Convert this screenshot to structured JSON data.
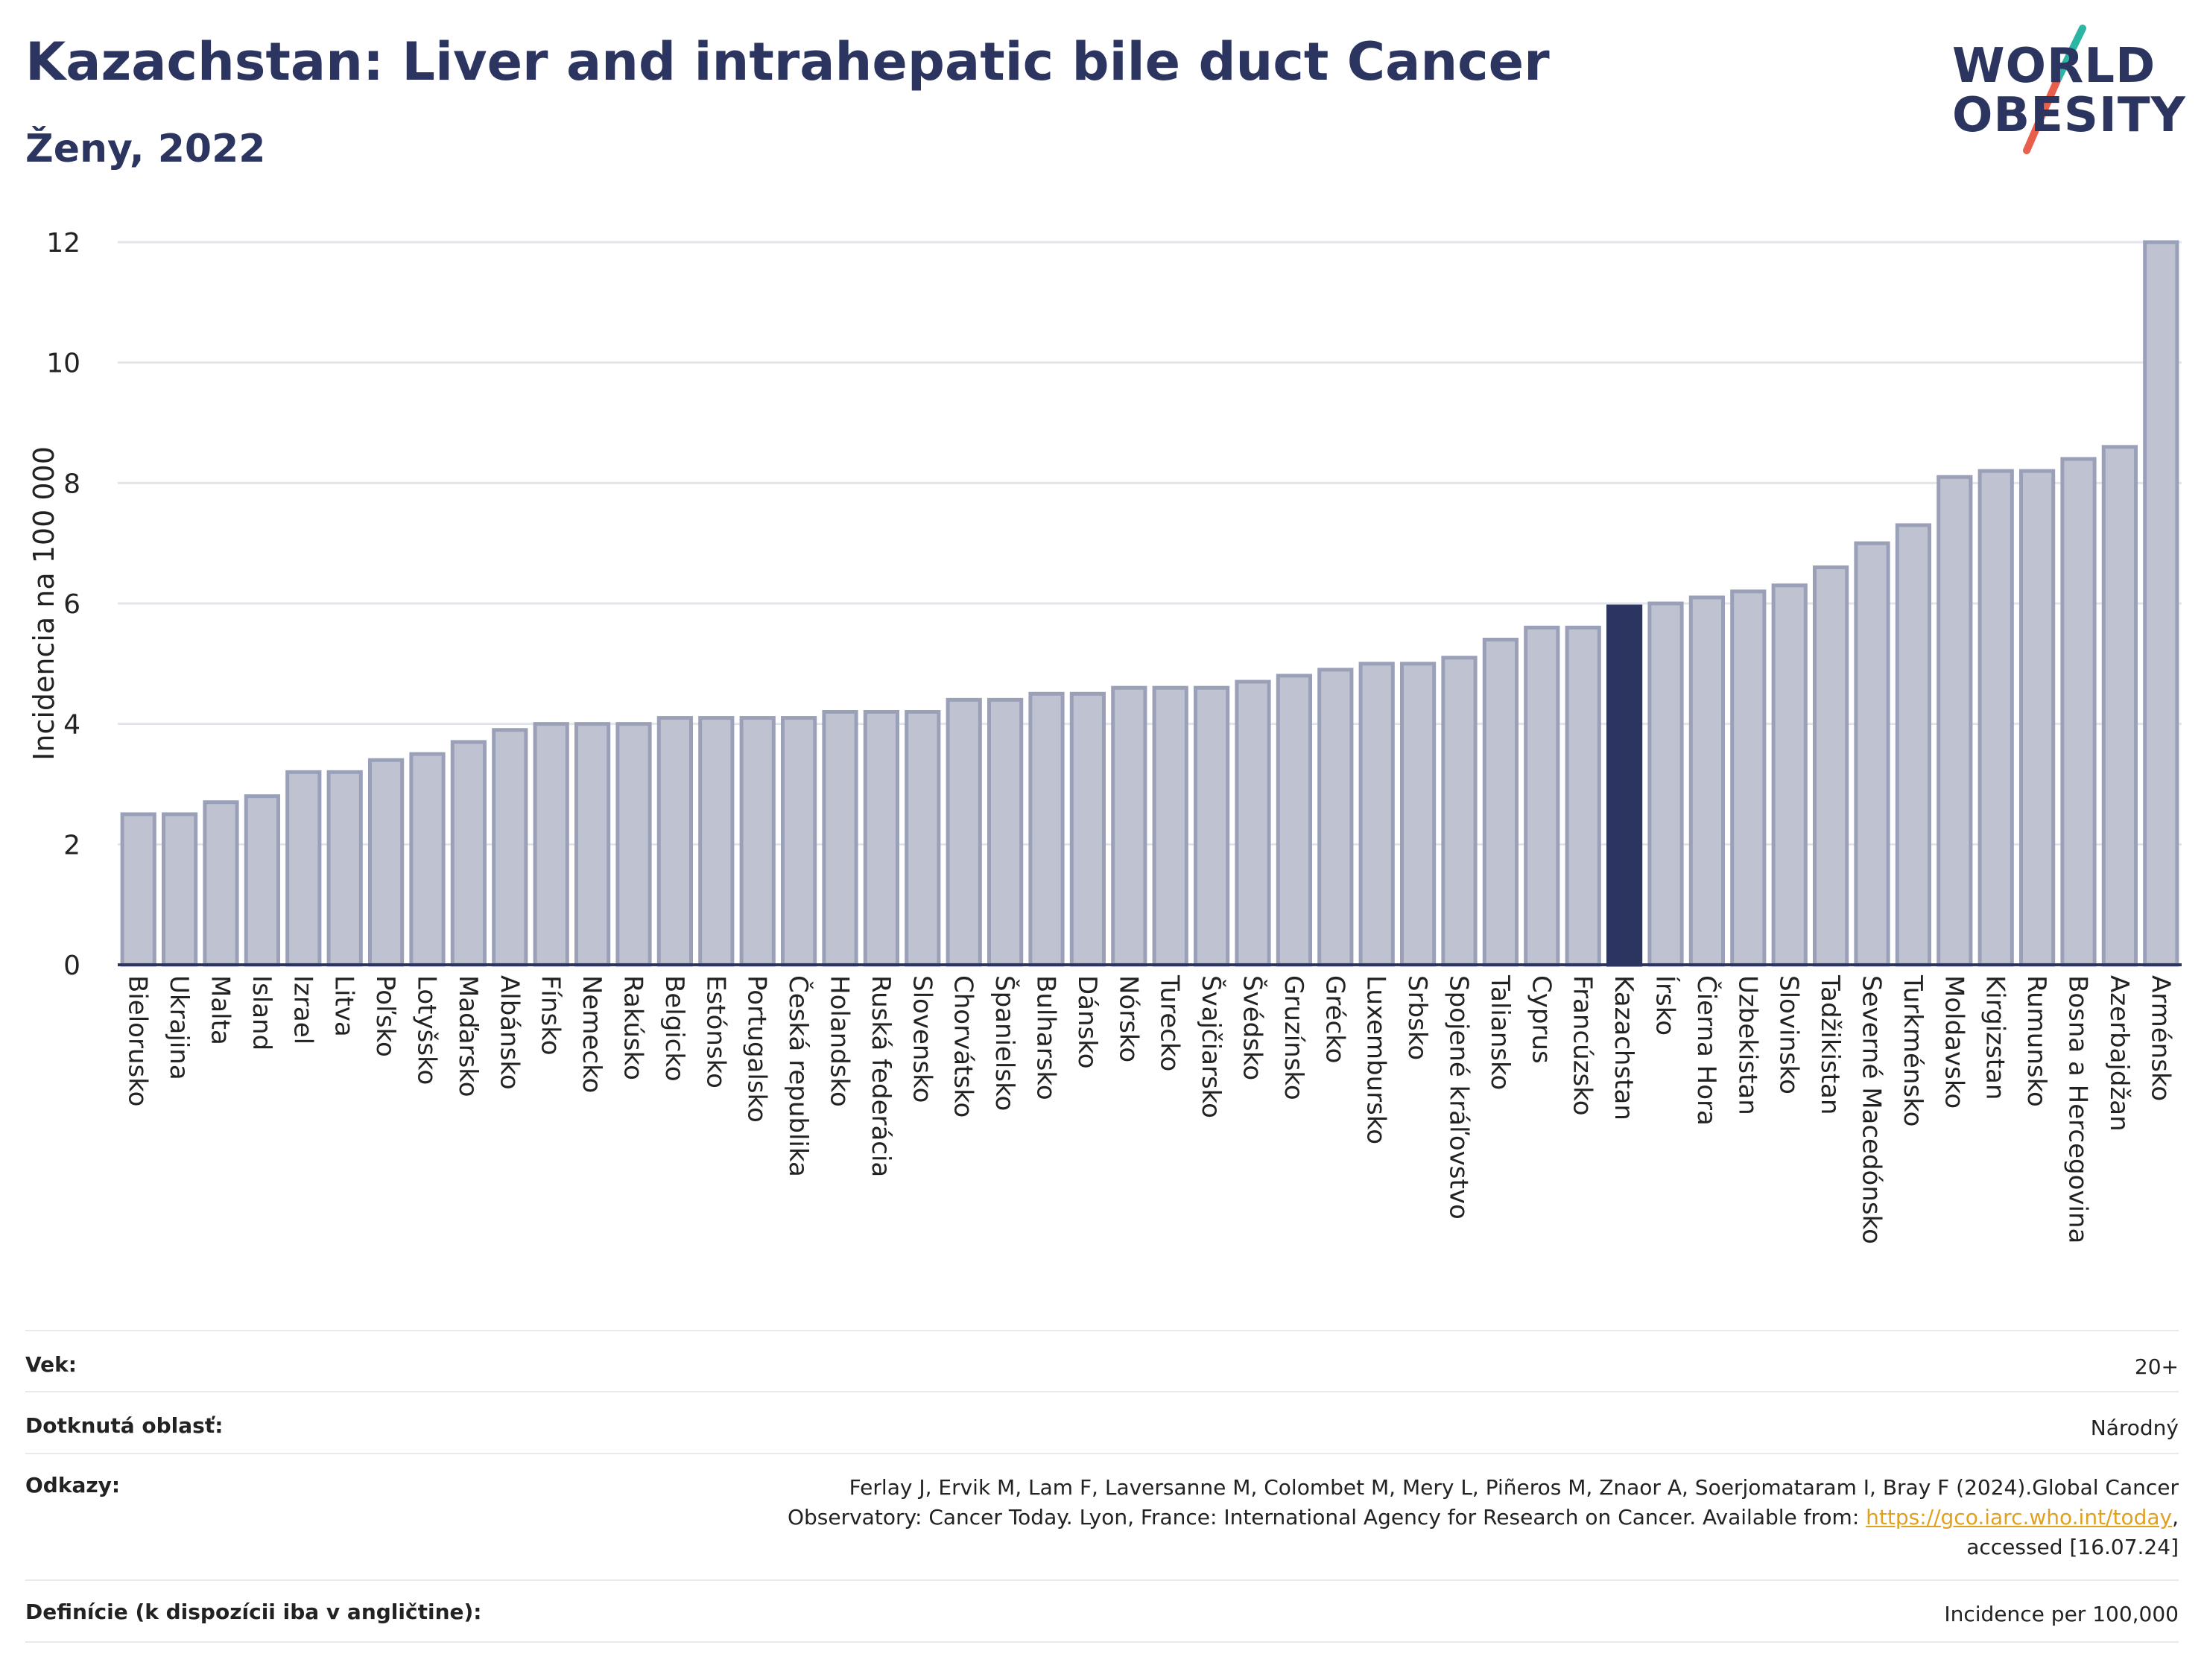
{
  "header": {
    "title": "Kazachstan: Liver and intrahepatic bile duct Cancer",
    "subtitle": "Ženy, 2022"
  },
  "logo": {
    "line1": "WORLD",
    "line2": "OBESITY",
    "accent_colors": [
      "#2ab5a5",
      "#e8604c"
    ]
  },
  "colors": {
    "bar": "#bfc3d1",
    "bar_stroke": "#9aa0b8",
    "highlight": "#2b3560",
    "grid": "#e3e5ec",
    "axis": "#2b3560"
  },
  "chart_data": {
    "type": "bar",
    "title": "Kazachstan: Liver and intrahepatic bile duct Cancer",
    "subtitle": "Ženy, 2022",
    "ylabel": "Incidencia na 100 000",
    "xlabel": "",
    "ylim": [
      0,
      12
    ],
    "yticks": [
      0,
      2,
      4,
      6,
      8,
      10,
      12
    ],
    "grid": true,
    "highlight": "Kazachstan",
    "categories": [
      "Bielorusko",
      "Ukrajina",
      "Malta",
      "Island",
      "Izrael",
      "Litva",
      "Poľsko",
      "Lotyšsko",
      "Maďarsko",
      "Albánsko",
      "Fínsko",
      "Nemecko",
      "Rakúsko",
      "Belgicko",
      "Estónsko",
      "Portugalsko",
      "Česká republika",
      "Holandsko",
      "Ruská federácia",
      "Slovensko",
      "Chorvátsko",
      "Španielsko",
      "Bulharsko",
      "Dánsko",
      "Nórsko",
      "Turecko",
      "Švajčiarsko",
      "Švédsko",
      "Gruzínsko",
      "Grécko",
      "Luxembursko",
      "Srbsko",
      "Spojené kráľovstvo",
      "Taliansko",
      "Cyprus",
      "Francúzsko",
      "Kazachstan",
      "Írsko",
      "Čierna Hora",
      "Uzbekistan",
      "Slovinsko",
      "Tadžikistan",
      "Severné Macedónsko",
      "Turkménsko",
      "Moldavsko",
      "Kirgizstan",
      "Rumunsko",
      "Bosna a Hercegovina",
      "Azerbajdžan",
      "Arménsko"
    ],
    "values": [
      2.5,
      2.5,
      2.7,
      2.8,
      3.2,
      3.2,
      3.4,
      3.5,
      3.7,
      3.9,
      4.0,
      4.0,
      4.0,
      4.1,
      4.1,
      4.1,
      4.1,
      4.2,
      4.2,
      4.2,
      4.4,
      4.4,
      4.5,
      4.5,
      4.6,
      4.6,
      4.6,
      4.7,
      4.8,
      4.9,
      5.0,
      5.0,
      5.1,
      5.4,
      5.6,
      5.6,
      5.95,
      6.0,
      6.1,
      6.2,
      6.3,
      6.6,
      7.0,
      7.3,
      8.1,
      8.2,
      8.2,
      8.4,
      8.6,
      12.0
    ]
  },
  "info": {
    "rows": [
      {
        "label": "Vek:",
        "value": "20+"
      },
      {
        "label": "Dotknutá oblasť:",
        "value": "Národný"
      },
      {
        "label": "Odkazy:",
        "value_line1": "Ferlay J, Ervik M, Lam F, Laversanne M, Colombet M, Mery L, Piñeros M, Znaor A, Soerjomataram I, Bray F (2024).Global Cancer",
        "value_line2_pre": "Observatory: Cancer Today. Lyon, France: International Agency for Research on Cancer. Available from: ",
        "value_link": "https://gco.iarc.who.int/today",
        "value_line2_post": ",",
        "value_line3": "accessed [16.07.24]"
      },
      {
        "label": "Definície (k dispozícii iba v angličtine):",
        "value": "Incidence per 100,000"
      }
    ]
  }
}
